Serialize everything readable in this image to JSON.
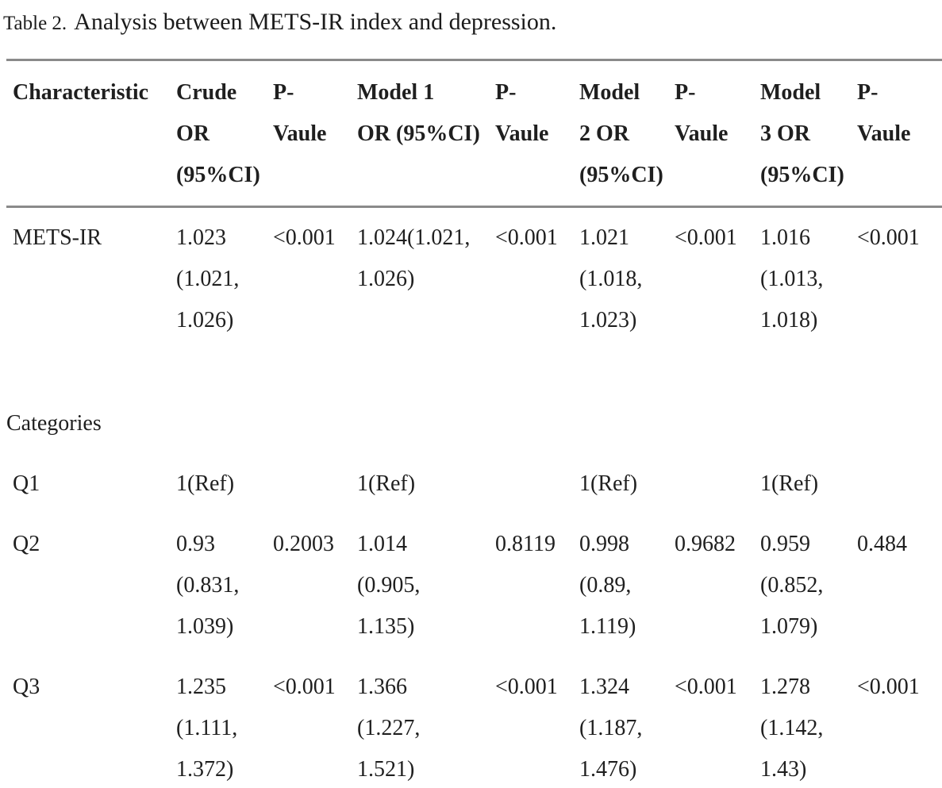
{
  "colors": {
    "rule": "#8a8a8a",
    "text": "#1f1f1f",
    "background": "#ffffff"
  },
  "page": {
    "title_label": "Table 2.",
    "title_caption": "Analysis between METS-IR index and depression."
  },
  "table": {
    "headers": [
      "Characteristic",
      "Crude\nOR\n(95%CI)",
      "P-\nVaule",
      "Model 1\nOR (95%CI)",
      "P-\nVaule",
      "Model\n2 OR\n(95%CI)",
      "P-\nVaule",
      "Model\n3 OR\n(95%CI)",
      "P-\nVaule"
    ],
    "rows": [
      {
        "type": "data",
        "cells": [
          "METS-IR",
          "1.023\n(1.021,\n1.026)",
          "<0.001",
          "1.024(1.021,\n1.026)",
          "<0.001",
          "1.021\n(1.018,\n1.023)",
          "<0.001",
          "1.016\n(1.013,\n1.018)",
          "<0.001"
        ]
      },
      {
        "type": "spacer",
        "cells": []
      },
      {
        "type": "section",
        "cells": [
          "Categories"
        ]
      },
      {
        "type": "data",
        "cells": [
          "Q1",
          "1(Ref)",
          "",
          "1(Ref)",
          "",
          "1(Ref)",
          "",
          "1(Ref)",
          ""
        ]
      },
      {
        "type": "data",
        "cells": [
          "Q2",
          "0.93\n(0.831,\n1.039)",
          "0.2003",
          "1.014\n(0.905,\n1.135)",
          "0.8119",
          "0.998\n(0.89,\n1.119)",
          "0.9682",
          "0.959\n(0.852,\n1.079)",
          "0.484"
        ]
      },
      {
        "type": "data",
        "cells": [
          "Q3",
          "1.235\n(1.111,\n1.372)",
          "<0.001",
          "1.366\n(1.227,\n1.521)",
          "<0.001",
          "1.324\n(1.187,\n1.476)",
          "<0.001",
          "1.278\n(1.142,\n1.43)",
          "<0.001"
        ]
      }
    ]
  }
}
